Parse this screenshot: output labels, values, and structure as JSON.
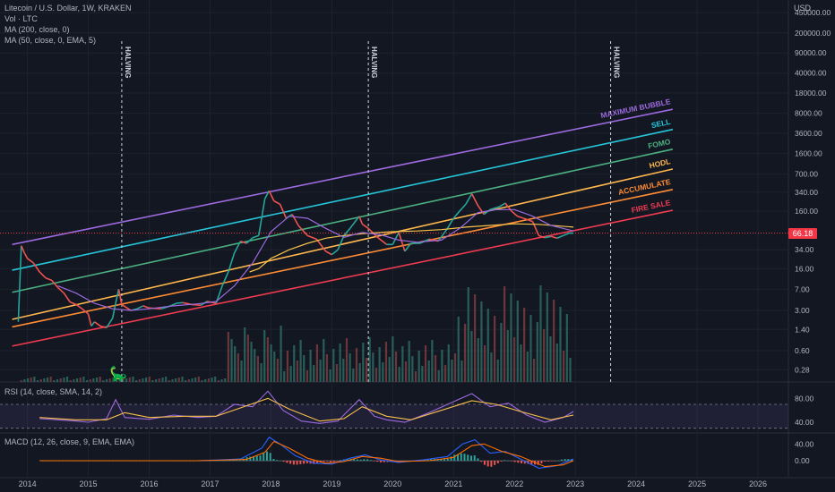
{
  "header": {
    "symbol_line": "Litecoin / U.S. Dollar, 1W, KRAKEN",
    "volume_line": "Vol · LTC",
    "ma200_line": "MA (200, close, 0)",
    "ma50_line": "MA (50, close, 0, EMA, 5)"
  },
  "currency_label": "USD",
  "current_price": "66.18",
  "rsi_label": "RSI (14, close, SMA, 14, 2)",
  "macd_label": "MACD (12, 26, close, 9, EMA, EMA)",
  "colors": {
    "background": "#131722",
    "up": "#26a69a",
    "down": "#ef5350",
    "price_line": "#f23645"
  },
  "chart_data": [
    {
      "type": "line",
      "pane": "price",
      "scale": "log",
      "x_ticks": [
        "2014",
        "2015",
        "2016",
        "2017",
        "2018",
        "2019",
        "2020",
        "2021",
        "2022",
        "2023",
        "2024",
        "2025",
        "2026"
      ],
      "y_ticks": [
        "450000.00",
        "200000.00",
        "90000.00",
        "40000.00",
        "18000.00",
        "8000.00",
        "3600.00",
        "1600.00",
        "700.00",
        "340.00",
        "160.00",
        "66.18",
        "34.00",
        "16.00",
        "7.00",
        "3.00",
        "1.40",
        "0.60",
        "0.28"
      ],
      "y_tick_values": [
        450000,
        200000,
        90000,
        40000,
        18000,
        8000,
        3600,
        1600,
        700,
        340,
        160,
        66.18,
        34,
        16,
        7,
        3,
        1.4,
        0.6,
        0.28
      ],
      "ylim": [
        0.22,
        560000
      ],
      "xlim": [
        2013.55,
        2026.5
      ],
      "bands": [
        {
          "name": "MAXIMUM BUBBLE",
          "color": "#9c6ade",
          "start": [
            2013.75,
            42
          ],
          "end": [
            2024.6,
            9400
          ]
        },
        {
          "name": "SELL",
          "color": "#26c6da",
          "start": [
            2013.75,
            15
          ],
          "end": [
            2024.6,
            4200
          ]
        },
        {
          "name": "FOMO",
          "color": "#4caf80",
          "start": [
            2013.75,
            6.2
          ],
          "end": [
            2024.6,
            1900
          ]
        },
        {
          "name": "HODL",
          "color": "#ffb74d",
          "start": [
            2013.75,
            2.1
          ],
          "end": [
            2024.6,
            860
          ]
        },
        {
          "name": "ACCUMULATE",
          "color": "#ff8c33",
          "start": [
            2013.75,
            1.55
          ],
          "end": [
            2024.6,
            380
          ]
        },
        {
          "name": "FIRE SALE",
          "color": "#ef3b50",
          "start": [
            2013.75,
            0.72
          ],
          "end": [
            2024.6,
            165
          ]
        }
      ],
      "halvings": [
        {
          "label": "HALVING",
          "x": 2015.55
        },
        {
          "label": "HALVING",
          "x": 2019.6
        },
        {
          "label": "HALVING",
          "x": 2023.58
        }
      ],
      "price_series": [
        [
          2013.85,
          1.9
        ],
        [
          2013.9,
          40
        ],
        [
          2013.95,
          30
        ],
        [
          2014.0,
          24
        ],
        [
          2014.1,
          20
        ],
        [
          2014.2,
          14
        ],
        [
          2014.3,
          11
        ],
        [
          2014.4,
          10
        ],
        [
          2014.5,
          7.5
        ],
        [
          2014.6,
          6
        ],
        [
          2014.7,
          4.2
        ],
        [
          2014.8,
          3.8
        ],
        [
          2014.9,
          3.2
        ],
        [
          2015.0,
          2.6
        ],
        [
          2015.05,
          1.6
        ],
        [
          2015.1,
          1.9
        ],
        [
          2015.2,
          1.6
        ],
        [
          2015.3,
          1.5
        ],
        [
          2015.4,
          2.2
        ],
        [
          2015.45,
          4.0
        ],
        [
          2015.5,
          7.0
        ],
        [
          2015.55,
          3.8
        ],
        [
          2015.7,
          3.0
        ],
        [
          2015.8,
          3.2
        ],
        [
          2015.9,
          3.6
        ],
        [
          2016.0,
          3.3
        ],
        [
          2016.2,
          3.2
        ],
        [
          2016.35,
          3.6
        ],
        [
          2016.45,
          4.0
        ],
        [
          2016.55,
          4.1
        ],
        [
          2016.7,
          3.8
        ],
        [
          2016.85,
          3.7
        ],
        [
          2016.95,
          4.3
        ],
        [
          2017.1,
          4.0
        ],
        [
          2017.2,
          8.0
        ],
        [
          2017.3,
          14
        ],
        [
          2017.4,
          30
        ],
        [
          2017.5,
          48
        ],
        [
          2017.6,
          44
        ],
        [
          2017.7,
          55
        ],
        [
          2017.8,
          60
        ],
        [
          2017.9,
          260
        ],
        [
          2017.97,
          360
        ],
        [
          2018.05,
          240
        ],
        [
          2018.15,
          210
        ],
        [
          2018.25,
          120
        ],
        [
          2018.35,
          140
        ],
        [
          2018.45,
          90
        ],
        [
          2018.6,
          60
        ],
        [
          2018.75,
          52
        ],
        [
          2018.9,
          32
        ],
        [
          2019.0,
          28
        ],
        [
          2019.1,
          34
        ],
        [
          2019.2,
          60
        ],
        [
          2019.3,
          80
        ],
        [
          2019.45,
          130
        ],
        [
          2019.5,
          95
        ],
        [
          2019.6,
          80
        ],
        [
          2019.75,
          56
        ],
        [
          2019.9,
          42
        ],
        [
          2020.0,
          42
        ],
        [
          2020.1,
          68
        ],
        [
          2020.2,
          32
        ],
        [
          2020.3,
          44
        ],
        [
          2020.45,
          44
        ],
        [
          2020.6,
          52
        ],
        [
          2020.75,
          48
        ],
        [
          2020.9,
          80
        ],
        [
          2021.0,
          120
        ],
        [
          2021.1,
          160
        ],
        [
          2021.2,
          210
        ],
        [
          2021.3,
          320
        ],
        [
          2021.4,
          200
        ],
        [
          2021.5,
          140
        ],
        [
          2021.6,
          170
        ],
        [
          2021.75,
          190
        ],
        [
          2021.85,
          220
        ],
        [
          2021.95,
          160
        ],
        [
          2022.05,
          130
        ],
        [
          2022.15,
          120
        ],
        [
          2022.3,
          105
        ],
        [
          2022.4,
          60
        ],
        [
          2022.5,
          55
        ],
        [
          2022.6,
          58
        ],
        [
          2022.7,
          54
        ],
        [
          2022.8,
          60
        ],
        [
          2022.9,
          66
        ],
        [
          2022.97,
          66.18
        ]
      ],
      "ma200_series": [
        [
          2017.65,
          14
        ],
        [
          2017.8,
          16
        ],
        [
          2018.0,
          24
        ],
        [
          2018.3,
          34
        ],
        [
          2018.6,
          44
        ],
        [
          2018.9,
          54
        ],
        [
          2019.2,
          60
        ],
        [
          2019.6,
          66
        ],
        [
          2020.0,
          70
        ],
        [
          2020.4,
          72
        ],
        [
          2020.8,
          76
        ],
        [
          2021.2,
          84
        ],
        [
          2021.6,
          90
        ],
        [
          2022.0,
          96
        ],
        [
          2022.4,
          94
        ],
        [
          2022.97,
          84
        ]
      ],
      "ma50_series": [
        [
          2014.5,
          8
        ],
        [
          2014.8,
          6
        ],
        [
          2015.1,
          4
        ],
        [
          2015.4,
          3.2
        ],
        [
          2015.7,
          3.0
        ],
        [
          2016.0,
          3.2
        ],
        [
          2016.4,
          3.6
        ],
        [
          2016.8,
          3.9
        ],
        [
          2017.1,
          4.3
        ],
        [
          2017.4,
          8
        ],
        [
          2017.7,
          20
        ],
        [
          2018.0,
          70
        ],
        [
          2018.3,
          130
        ],
        [
          2018.6,
          120
        ],
        [
          2018.9,
          80
        ],
        [
          2019.2,
          56
        ],
        [
          2019.5,
          68
        ],
        [
          2019.8,
          62
        ],
        [
          2020.1,
          50
        ],
        [
          2020.4,
          46
        ],
        [
          2020.8,
          50
        ],
        [
          2021.1,
          80
        ],
        [
          2021.4,
          150
        ],
        [
          2021.7,
          170
        ],
        [
          2022.0,
          170
        ],
        [
          2022.3,
          130
        ],
        [
          2022.6,
          90
        ],
        [
          2022.97,
          72
        ]
      ]
    },
    {
      "type": "line",
      "pane": "rsi",
      "y_ticks": [
        "80.00",
        "40.00"
      ],
      "y_tick_values": [
        80,
        40
      ],
      "ylim": [
        28,
        100
      ],
      "band": [
        30,
        70
      ],
      "rsi_series": [
        [
          2014.2,
          46
        ],
        [
          2014.5,
          44
        ],
        [
          2014.8,
          42
        ],
        [
          2015.0,
          40
        ],
        [
          2015.3,
          46
        ],
        [
          2015.45,
          78
        ],
        [
          2015.6,
          48
        ],
        [
          2016.0,
          45
        ],
        [
          2016.4,
          52
        ],
        [
          2016.8,
          48
        ],
        [
          2017.1,
          50
        ],
        [
          2017.4,
          70
        ],
        [
          2017.7,
          66
        ],
        [
          2017.95,
          92
        ],
        [
          2018.2,
          60
        ],
        [
          2018.5,
          42
        ],
        [
          2018.8,
          38
        ],
        [
          2019.1,
          42
        ],
        [
          2019.45,
          78
        ],
        [
          2019.7,
          50
        ],
        [
          2019.9,
          44
        ],
        [
          2020.2,
          40
        ],
        [
          2020.6,
          56
        ],
        [
          2020.9,
          70
        ],
        [
          2021.3,
          88
        ],
        [
          2021.6,
          66
        ],
        [
          2021.9,
          72
        ],
        [
          2022.2,
          52
        ],
        [
          2022.5,
          40
        ],
        [
          2022.8,
          48
        ],
        [
          2022.97,
          58
        ]
      ],
      "rsi_ma_series": [
        [
          2014.2,
          48
        ],
        [
          2014.8,
          44
        ],
        [
          2015.3,
          44
        ],
        [
          2015.6,
          56
        ],
        [
          2016.0,
          48
        ],
        [
          2016.6,
          50
        ],
        [
          2017.1,
          50
        ],
        [
          2017.5,
          64
        ],
        [
          2017.95,
          80
        ],
        [
          2018.3,
          62
        ],
        [
          2018.8,
          42
        ],
        [
          2019.2,
          46
        ],
        [
          2019.5,
          66
        ],
        [
          2019.9,
          50
        ],
        [
          2020.3,
          44
        ],
        [
          2020.8,
          60
        ],
        [
          2021.3,
          76
        ],
        [
          2021.7,
          70
        ],
        [
          2022.1,
          58
        ],
        [
          2022.6,
          44
        ],
        [
          2022.97,
          52
        ]
      ]
    },
    {
      "type": "line",
      "pane": "macd",
      "y_ticks": [
        "40.00",
        "0.00"
      ],
      "y_tick_values": [
        40,
        0
      ],
      "ylim": [
        -32,
        62
      ],
      "macd_series": [
        [
          2014.2,
          0
        ],
        [
          2016.8,
          0
        ],
        [
          2017.5,
          4
        ],
        [
          2017.85,
          30
        ],
        [
          2017.97,
          56
        ],
        [
          2018.15,
          40
        ],
        [
          2018.4,
          12
        ],
        [
          2018.7,
          -6
        ],
        [
          2019.0,
          -8
        ],
        [
          2019.3,
          6
        ],
        [
          2019.55,
          14
        ],
        [
          2019.8,
          2
        ],
        [
          2020.1,
          -4
        ],
        [
          2020.5,
          2
        ],
        [
          2020.9,
          10
        ],
        [
          2021.15,
          40
        ],
        [
          2021.35,
          50
        ],
        [
          2021.6,
          18
        ],
        [
          2021.85,
          22
        ],
        [
          2022.1,
          4
        ],
        [
          2022.4,
          -18
        ],
        [
          2022.7,
          -12
        ],
        [
          2022.97,
          4
        ]
      ],
      "signal_series": [
        [
          2014.2,
          0
        ],
        [
          2016.8,
          0
        ],
        [
          2017.6,
          3
        ],
        [
          2017.9,
          20
        ],
        [
          2018.05,
          46
        ],
        [
          2018.3,
          30
        ],
        [
          2018.6,
          6
        ],
        [
          2018.9,
          -6
        ],
        [
          2019.2,
          -2
        ],
        [
          2019.5,
          10
        ],
        [
          2019.8,
          6
        ],
        [
          2020.1,
          -2
        ],
        [
          2020.6,
          0
        ],
        [
          2021.0,
          8
        ],
        [
          2021.3,
          36
        ],
        [
          2021.5,
          40
        ],
        [
          2021.8,
          22
        ],
        [
          2022.1,
          10
        ],
        [
          2022.5,
          -14
        ],
        [
          2022.8,
          -10
        ],
        [
          2022.97,
          0
        ]
      ]
    }
  ]
}
